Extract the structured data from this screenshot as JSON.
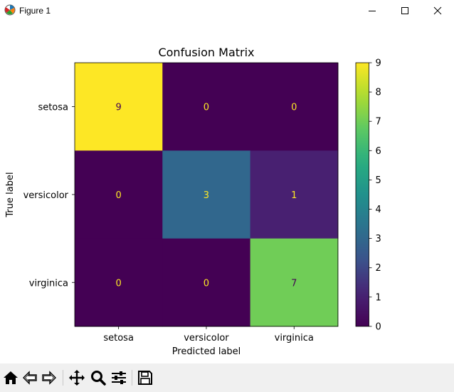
{
  "window": {
    "title": "Figure 1"
  },
  "toolbar": {
    "buttons": [
      {
        "icon": "home-icon"
      },
      {
        "icon": "back-icon"
      },
      {
        "icon": "forward-icon"
      },
      {
        "icon": "pan-icon"
      },
      {
        "icon": "zoom-icon"
      },
      {
        "icon": "configure-subplots-icon"
      },
      {
        "icon": "save-icon"
      }
    ]
  },
  "chart_data": {
    "type": "heatmap",
    "title": "Confusion Matrix",
    "xlabel": "Predicted label",
    "ylabel": "True label",
    "x_categories": [
      "setosa",
      "versicolor",
      "virginica"
    ],
    "y_categories": [
      "setosa",
      "versicolor",
      "virginica"
    ],
    "values": [
      [
        9,
        0,
        0
      ],
      [
        0,
        3,
        1
      ],
      [
        0,
        0,
        7
      ]
    ],
    "colormap": "viridis",
    "colorbar": {
      "min": 0,
      "max": 9,
      "ticks": [
        0,
        1,
        2,
        3,
        4,
        5,
        6,
        7,
        8,
        9
      ]
    },
    "grid": false
  }
}
